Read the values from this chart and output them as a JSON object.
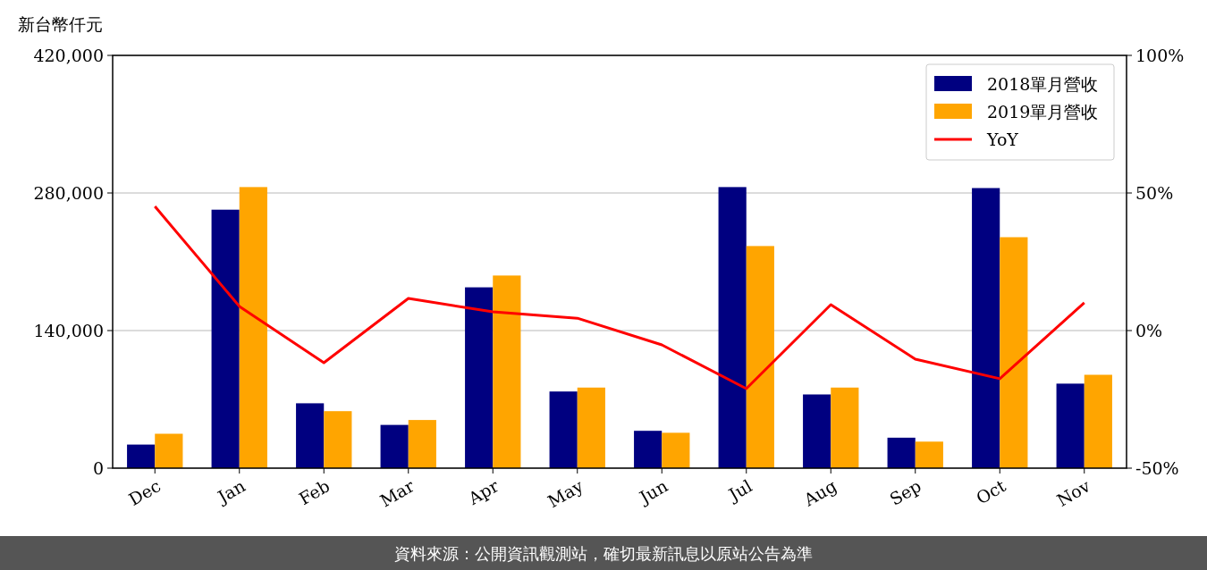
{
  "chart_data": {
    "type": "bar",
    "ylabel": "新台幣仟元",
    "categories": [
      "Dec",
      "Jan",
      "Feb",
      "Mar",
      "Apr",
      "May",
      "Jun",
      "Jul",
      "Aug",
      "Sep",
      "Oct",
      "Nov"
    ],
    "series": [
      {
        "name": "2018單月營收",
        "color": "#000080",
        "values": [
          24000,
          263000,
          66000,
          44000,
          184000,
          78000,
          38000,
          286000,
          75000,
          31000,
          285000,
          86000
        ]
      },
      {
        "name": "2019單月營收",
        "color": "#ffa500",
        "values": [
          35000,
          286000,
          58000,
          49000,
          196000,
          82000,
          36000,
          226000,
          82000,
          27000,
          235000,
          95000
        ]
      },
      {
        "name": "YoY",
        "type": "line",
        "axis": "y2",
        "color": "#ff0000",
        "values": [
          45.1,
          8.8,
          -11.7,
          11.7,
          6.8,
          4.5,
          -5.2,
          -21.1,
          9.4,
          -10.4,
          -17.5,
          10.1
        ]
      }
    ],
    "ylim": [
      0,
      420000
    ],
    "yticks": [
      {
        "value": 0,
        "label": "0"
      },
      {
        "value": 140000,
        "label": "140,000"
      },
      {
        "value": 280000,
        "label": "280,000"
      },
      {
        "value": 420000,
        "label": "420,000"
      }
    ],
    "y2lim": [
      -50,
      100
    ],
    "y2ticks": [
      {
        "value": -50,
        "label": "-50%"
      },
      {
        "value": 0,
        "label": "0%"
      },
      {
        "value": 50,
        "label": "50%"
      },
      {
        "value": 100,
        "label": "100%"
      }
    ],
    "grid": "y",
    "legend": "top right",
    "annotations": [
      "資料來源：公開資訊觀測站，確切最新訊息以原站公告為準"
    ]
  }
}
